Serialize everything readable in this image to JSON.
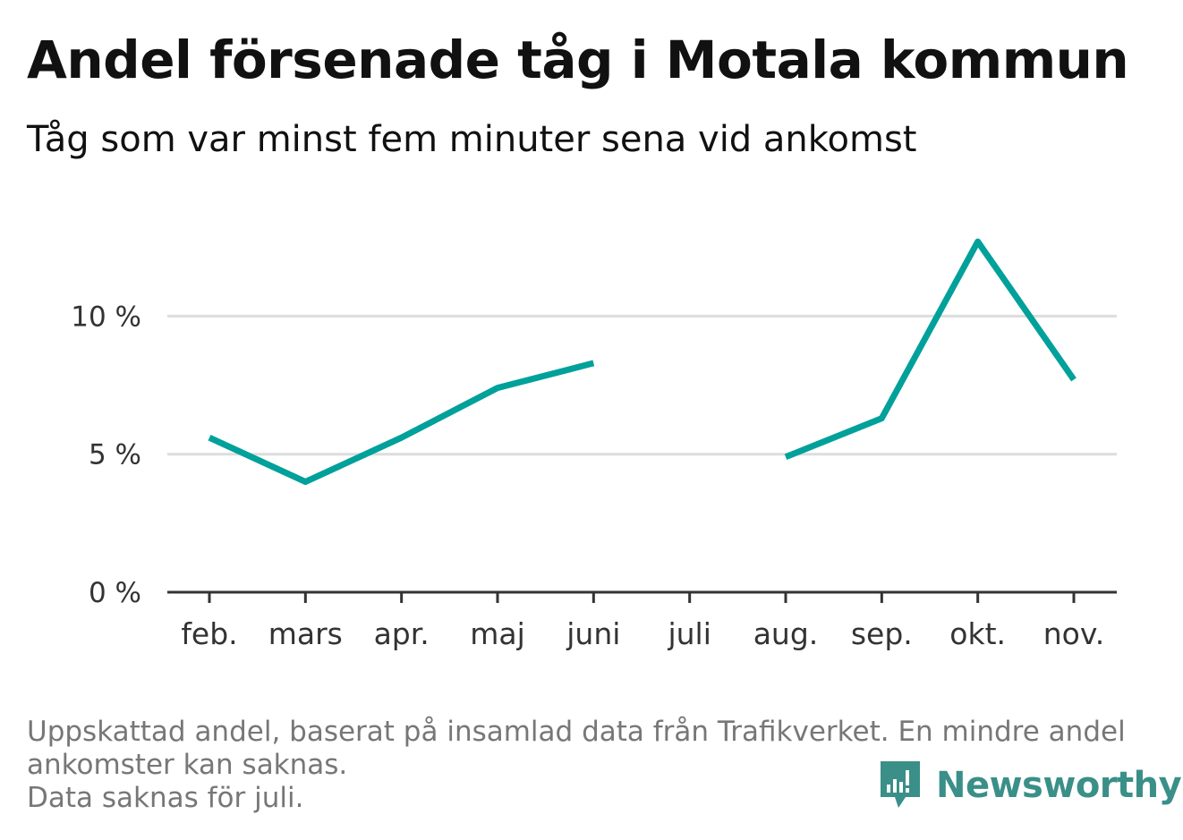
{
  "header": {
    "title": "Andel försenade tåg i Motala kommun",
    "subtitle": "Tåg som var minst fem minuter sena vid ankomst"
  },
  "chart_data": {
    "type": "line",
    "categories": [
      "feb.",
      "mars",
      "apr.",
      "maj",
      "juni",
      "juli",
      "aug.",
      "sep.",
      "okt.",
      "nov."
    ],
    "series": [
      {
        "values": [
          5.6,
          4.0,
          5.6,
          7.4,
          8.3,
          null,
          4.9,
          6.3,
          12.7,
          7.7
        ],
        "color": "#00a19a"
      }
    ],
    "yticks": [
      "0 %",
      "5 %",
      "10 %"
    ],
    "ytick_values": [
      0,
      5,
      10
    ],
    "ylim": [
      0,
      14
    ],
    "grid": true,
    "legend": "none",
    "colors": {
      "line": "#00a19a",
      "grid": "#dddddd",
      "axis": "#333333"
    }
  },
  "footnote": {
    "line1": "Uppskattad andel, baserat på insamlad data från Trafikverket. En mindre andel",
    "line2": "ankomster kan saknas.",
    "line3": "Data saknas för juli."
  },
  "logo": {
    "text": "Newsworthy",
    "icon": "bar-chart-bubble-icon",
    "color": "#3a8f88"
  }
}
